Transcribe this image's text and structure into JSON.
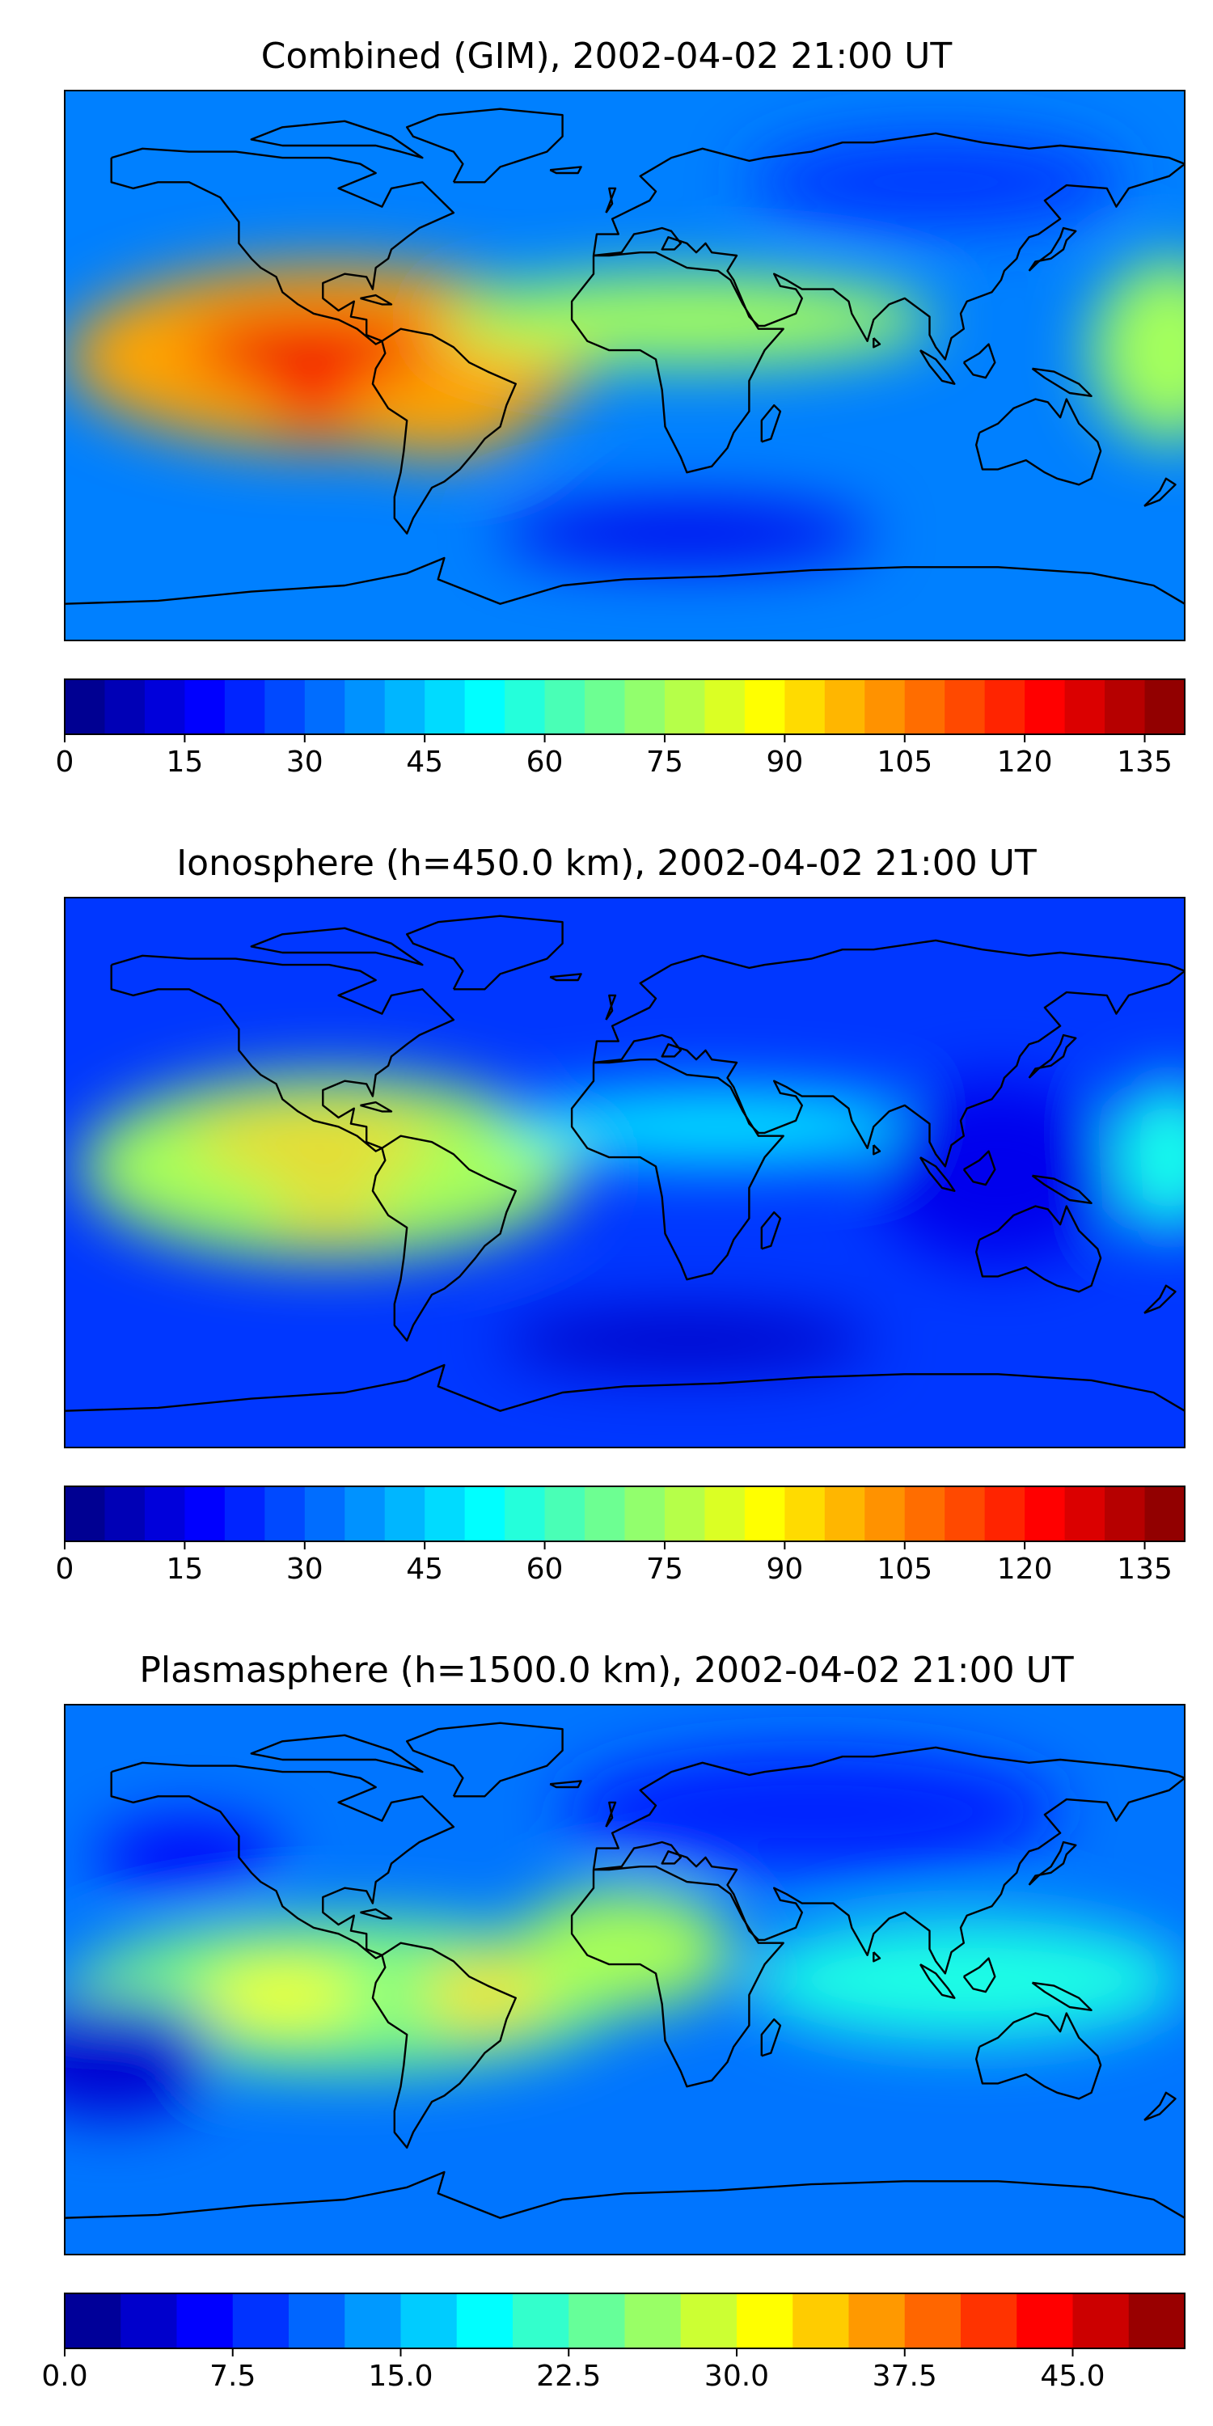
{
  "panels": [
    {
      "title": "Combined (GIM), 2002-04-02 21:00 UT",
      "colorbar": {
        "min": 0,
        "max": 140,
        "levels": 28,
        "tick_labels": [
          "0",
          "15",
          "30",
          "45",
          "60",
          "75",
          "90",
          "105",
          "120",
          "135"
        ],
        "tick_values": [
          0,
          15,
          30,
          45,
          60,
          75,
          90,
          105,
          120,
          135
        ]
      },
      "blobs": [
        {
          "lon": -95,
          "lat": 3,
          "rx": 85,
          "ry": 30,
          "value": 100
        },
        {
          "lon": -100,
          "lat": 5,
          "rx": 40,
          "ry": 12,
          "value": 125
        },
        {
          "lon": -80,
          "lat": -12,
          "rx": 35,
          "ry": 10,
          "value": 120
        },
        {
          "lon": -60,
          "lat": -15,
          "rx": 30,
          "ry": 15,
          "value": 100
        },
        {
          "lon": 20,
          "lat": 15,
          "rx": 80,
          "ry": 15,
          "value": 75
        },
        {
          "lon": 175,
          "lat": 5,
          "rx": 25,
          "ry": 30,
          "value": 75
        },
        {
          "lon": 20,
          "lat": -55,
          "rx": 60,
          "ry": 10,
          "value": 15
        },
        {
          "lon": 100,
          "lat": 60,
          "rx": 60,
          "ry": 15,
          "value": 25
        }
      ],
      "background_value": 35
    },
    {
      "title": "Ionosphere  (h=450.0 km), 2002-04-02 21:00 UT",
      "colorbar": {
        "min": 0,
        "max": 140,
        "levels": 28,
        "tick_labels": [
          "0",
          "15",
          "30",
          "45",
          "60",
          "75",
          "90",
          "105",
          "120",
          "135"
        ],
        "tick_values": [
          0,
          15,
          30,
          45,
          60,
          75,
          90,
          105,
          120,
          135
        ]
      },
      "blobs": [
        {
          "lon": -95,
          "lat": 2,
          "rx": 80,
          "ry": 30,
          "value": 75
        },
        {
          "lon": -100,
          "lat": 10,
          "rx": 40,
          "ry": 8,
          "value": 95
        },
        {
          "lon": -95,
          "lat": -12,
          "rx": 20,
          "ry": 6,
          "value": 95
        },
        {
          "lon": 30,
          "lat": 15,
          "rx": 70,
          "ry": 12,
          "value": 50
        },
        {
          "lon": 175,
          "lat": 5,
          "rx": 20,
          "ry": 25,
          "value": 55
        },
        {
          "lon": 120,
          "lat": 0,
          "rx": 40,
          "ry": 30,
          "value": 15
        },
        {
          "lon": 20,
          "lat": -55,
          "rx": 60,
          "ry": 10,
          "value": 10
        }
      ],
      "background_value": 25
    },
    {
      "title": "Plasmasphere (h=1500.0 km), 2002-04-02 21:00 UT",
      "colorbar": {
        "min": 0,
        "max": 50,
        "levels": 20,
        "tick_labels": [
          "0.0",
          "7.5",
          "15.0",
          "22.5",
          "30.0",
          "37.5",
          "45.0"
        ],
        "tick_values": [
          0,
          7.5,
          15,
          22.5,
          30,
          37.5,
          45
        ]
      },
      "blobs": [
        {
          "lon": -90,
          "lat": -5,
          "rx": 90,
          "ry": 25,
          "value": 25
        },
        {
          "lon": -110,
          "lat": -5,
          "rx": 25,
          "ry": 10,
          "value": 31
        },
        {
          "lon": -45,
          "lat": -5,
          "rx": 20,
          "ry": 10,
          "value": 33
        },
        {
          "lon": 0,
          "lat": 10,
          "rx": 35,
          "ry": 20,
          "value": 27
        },
        {
          "lon": 110,
          "lat": 0,
          "rx": 70,
          "ry": 20,
          "value": 20
        },
        {
          "lon": -165,
          "lat": -25,
          "rx": 35,
          "ry": 20,
          "value": 4
        },
        {
          "lon": -140,
          "lat": 40,
          "rx": 30,
          "ry": 12,
          "value": 6
        },
        {
          "lon": 60,
          "lat": 55,
          "rx": 80,
          "ry": 20,
          "value": 8
        }
      ],
      "background_value": 12
    }
  ],
  "colormap": [
    "#00007f",
    "#0000d6",
    "#0000ff",
    "#0044ff",
    "#0090ff",
    "#00d4ff",
    "#29ffce",
    "#62ff94",
    "#94ff62",
    "#ceff29",
    "#ffe500",
    "#ffa200",
    "#ff5e00",
    "#f01300",
    "#a40000",
    "#7f0000"
  ]
}
